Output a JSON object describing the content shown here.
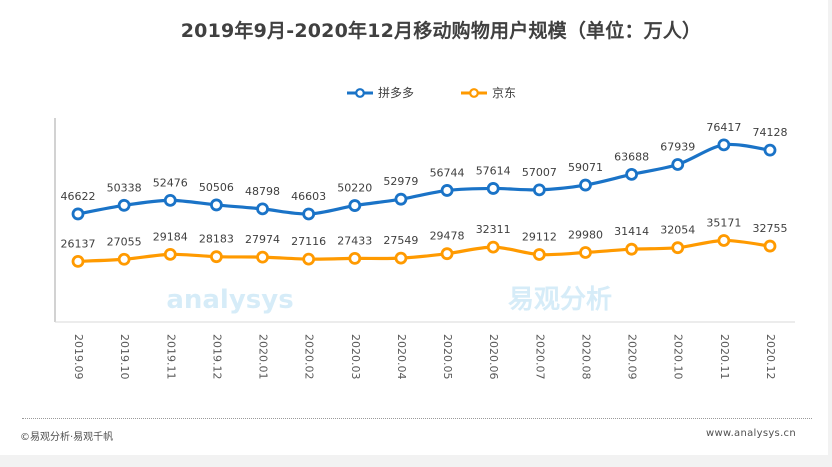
{
  "chart_data": {
    "type": "line",
    "title": "2019年9月-2020年12月移动购物用户规模（单位：万人）",
    "xlabel": "",
    "ylabel": "",
    "ylim": [
      0,
      88000
    ],
    "grid": false,
    "legend_position": "top-center",
    "categories": [
      "2019.09",
      "2019.10",
      "2019.11",
      "2019.12",
      "2020.01",
      "2020.02",
      "2020.03",
      "2020.04",
      "2020.05",
      "2020.06",
      "2020.07",
      "2020.08",
      "2020.09",
      "2020.10",
      "2020.11",
      "2020.12"
    ],
    "series": [
      {
        "name": "拼多多",
        "color": "#1a73c7",
        "values": [
          46622,
          50338,
          52476,
          50506,
          48798,
          46603,
          50220,
          52979,
          56744,
          57614,
          57007,
          59071,
          63688,
          67939,
          76417,
          74128
        ]
      },
      {
        "name": "京东",
        "color": "#ff9a00",
        "values": [
          26137,
          27055,
          29184,
          28183,
          27974,
          27116,
          27433,
          27549,
          29478,
          32311,
          29112,
          29980,
          31414,
          32054,
          35171,
          32755
        ]
      }
    ]
  },
  "footer": {
    "source": "©易观分析·易观千帆",
    "url": "www.analysys.cn"
  },
  "watermark": {
    "text_en": "analysys",
    "text_cn": "易观分析"
  }
}
